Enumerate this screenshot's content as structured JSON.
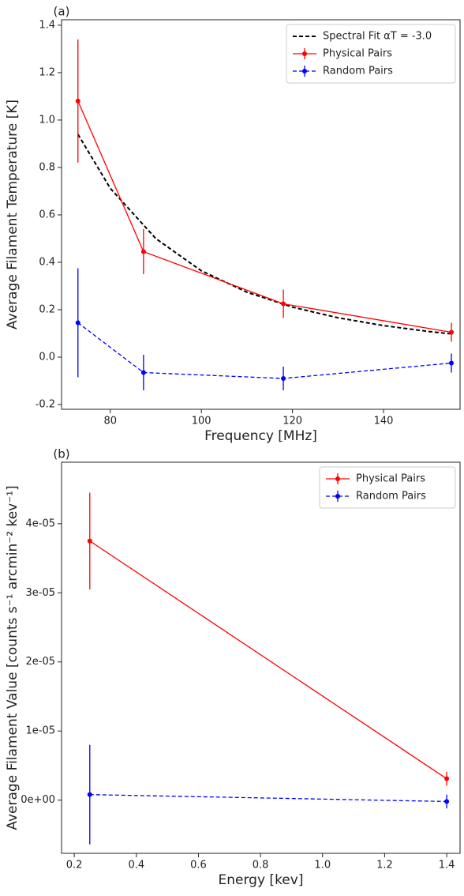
{
  "chart_data": [
    {
      "type": "line",
      "panel_label": "(a)",
      "x_label": "Frequency [MHz]",
      "y_label": "Average Filament Temperature [K]",
      "xlim": [
        69.3,
        156.8
      ],
      "ylim": [
        -0.22,
        1.423
      ],
      "xticks": [
        80,
        100,
        120,
        140
      ],
      "yticks": [
        -0.2,
        {
          "value": 0,
          "label": "0.0"
        },
        0.2,
        0.4,
        0.6,
        0.8,
        {
          "value": 1,
          "label": "1.0"
        },
        1.2,
        1.4
      ],
      "legend": "upper right",
      "series": [
        {
          "name": "Spectral Fit αT = -3.0",
          "color": "#000000",
          "linestyle": "dashed",
          "x": [
            72.9,
            80,
            90,
            100,
            110,
            120,
            130,
            140,
            150,
            154.9
          ],
          "values": [
            0.94,
            0.712,
            0.5,
            0.364,
            0.274,
            0.211,
            0.166,
            0.133,
            0.108,
            0.098
          ]
        },
        {
          "name": "Physical Pairs",
          "color": "#ff0000",
          "linestyle": "solid",
          "marker": true,
          "x": [
            72.9,
            87.3,
            118,
            154.9
          ],
          "values": [
            1.08,
            0.445,
            0.225,
            0.105
          ],
          "errors": [
            0.26,
            0.095,
            0.06,
            0.04
          ]
        },
        {
          "name": "Random Pairs",
          "color": "#0000ff",
          "linestyle": "dashed",
          "marker": true,
          "x": [
            72.9,
            87.3,
            118,
            154.9
          ],
          "values": [
            0.145,
            -0.065,
            -0.09,
            -0.025
          ],
          "errors": [
            0.23,
            0.075,
            0.05,
            0.04
          ]
        }
      ]
    },
    {
      "type": "line",
      "panel_label": "(b)",
      "x_label": "Energy [kev]",
      "y_label": "Average Filament Value [counts s⁻¹ arcmin⁻² kev⁻¹]",
      "xlim": [
        0.159,
        1.443
      ],
      "ylim": [
        -7.7e-06,
        4.89e-05
      ],
      "xticks": [
        0.2,
        0.4,
        0.6,
        0.8,
        {
          "value": 1,
          "label": "1.0"
        },
        1.2,
        1.4
      ],
      "yticks": [
        {
          "value": 0,
          "label": "0e+00"
        },
        {
          "value": 1e-05,
          "label": "1e-05"
        },
        {
          "value": 2e-05,
          "label": "2e-05"
        },
        {
          "value": 3e-05,
          "label": "3e-05"
        },
        {
          "value": 4e-05,
          "label": "4e-05"
        }
      ],
      "legend": "upper right",
      "series": [
        {
          "name": "Physical Pairs",
          "color": "#ff0000",
          "linestyle": "solid",
          "marker": true,
          "x": [
            0.25,
            1.4
          ],
          "values": [
            3.75e-05,
            3.1e-06
          ],
          "errors": [
            7e-06,
            1e-06
          ]
        },
        {
          "name": "Random Pairs",
          "color": "#0000ff",
          "linestyle": "dashed",
          "marker": true,
          "x": [
            0.25,
            1.4
          ],
          "values": [
            8e-07,
            -2e-07
          ],
          "errors": [
            7.2e-06,
            1e-06
          ]
        }
      ]
    }
  ]
}
